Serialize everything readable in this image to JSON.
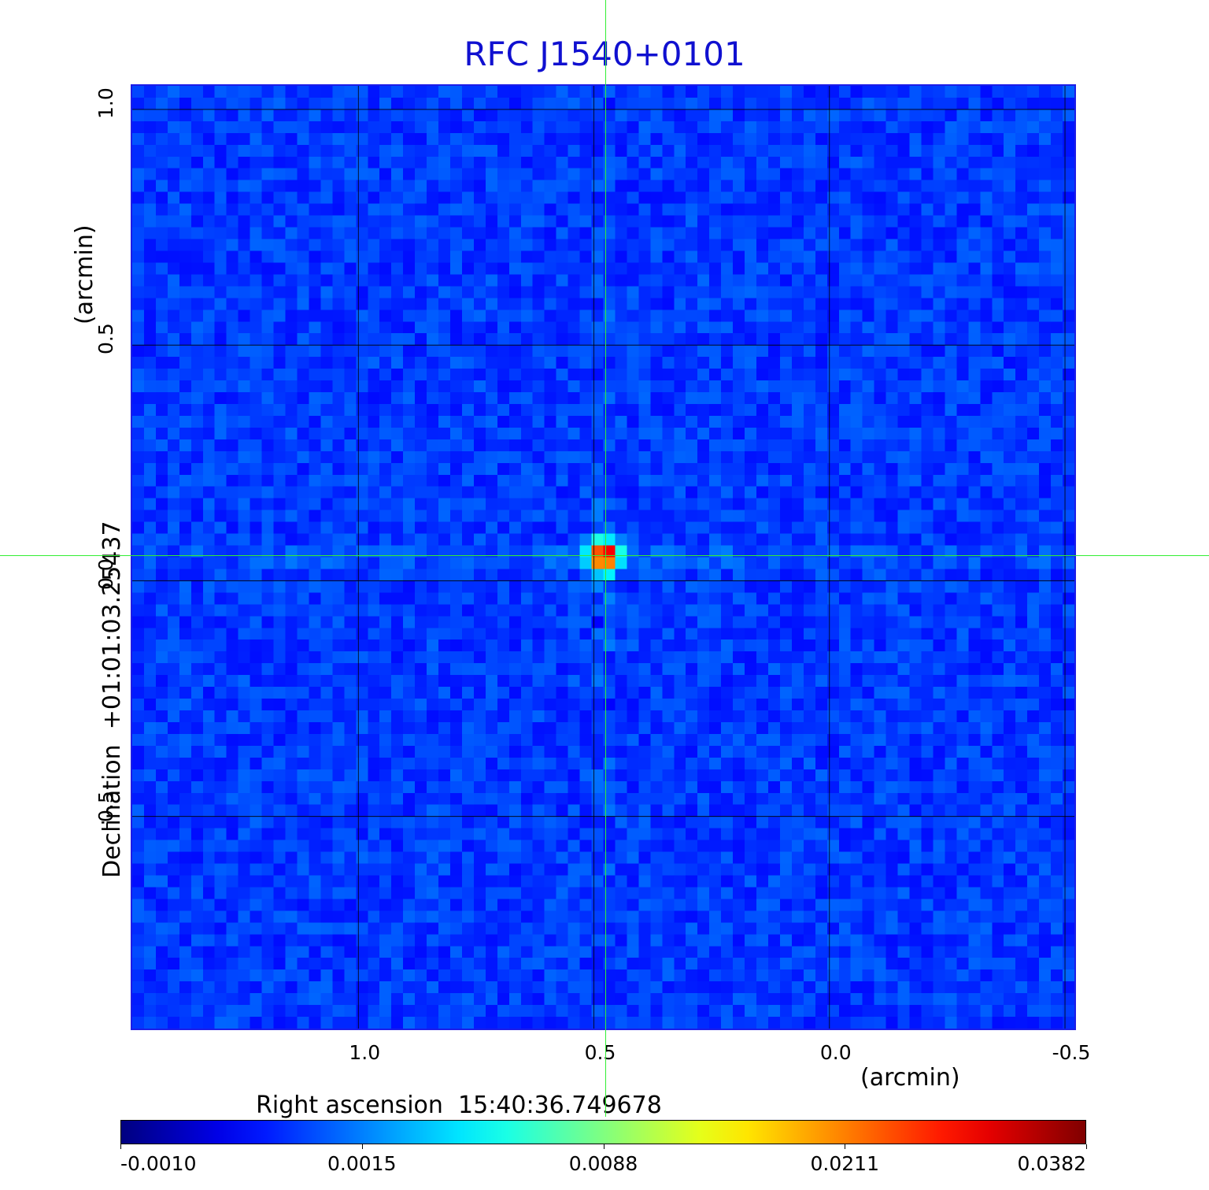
{
  "chart_data": {
    "type": "heatmap",
    "title": "RFC J1540+0101",
    "xlabel": "Right ascension",
    "xlabel_value": "15:40:36.749678",
    "xlabel_unit": "(arcmin)",
    "ylabel": "Declination",
    "ylabel_value": "+01:01:03.25437",
    "ylabel_unit": "(arcmin)",
    "xlim": [
      1.48,
      -0.52
    ],
    "ylim": [
      -0.95,
      1.05
    ],
    "x_ticks": [
      "1.0",
      "0.5",
      "0.0",
      "-0.5"
    ],
    "x_tick_values": [
      1.0,
      0.5,
      0.0,
      -0.5
    ],
    "y_ticks": [
      "1.0",
      "0.5",
      "0.0",
      "-0.5"
    ],
    "y_tick_values": [
      1.0,
      0.5,
      0.0,
      -0.5
    ],
    "grid": true,
    "colorscale": "jet",
    "colorbar_ticks": [
      "-0.0010",
      "0.0015",
      "0.0088",
      "0.0211",
      "0.0382"
    ],
    "colorbar_range": [
      -0.001,
      0.0382
    ],
    "background_level": 0.0005,
    "source": {
      "x": 0.48,
      "y": 0.053,
      "peak": 0.0382
    },
    "crosshair": {
      "x": 0.476,
      "y": 0.055
    }
  },
  "colors": {
    "title": "#1010d0",
    "frame": "#1c1ce8",
    "grid": "#000000",
    "crosshair": "#33ee33"
  }
}
